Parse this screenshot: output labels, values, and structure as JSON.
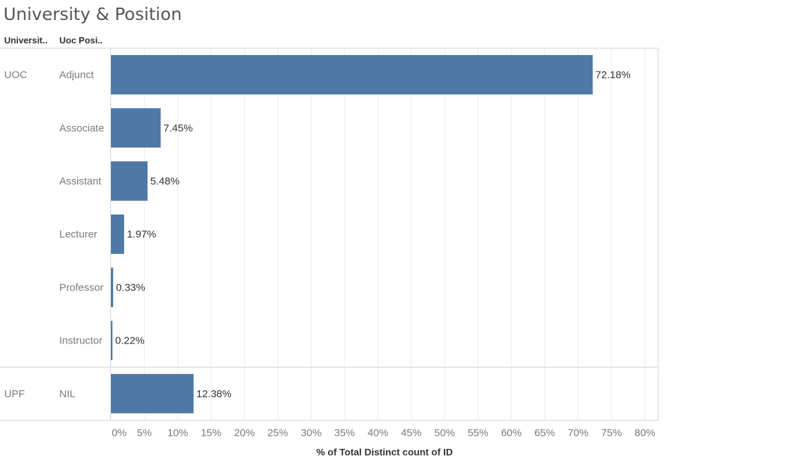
{
  "title": "University & Position",
  "column_headers": {
    "university": "Universit..",
    "position": "Uoc Posi.."
  },
  "colors": {
    "bar": "#4e79a7",
    "grid": "#ececec",
    "border": "#d2d2d2",
    "label": "#7a7a7a",
    "value_text": "#333333"
  },
  "chart_data": {
    "type": "bar",
    "orientation": "horizontal",
    "title": "University & Position",
    "xlabel": "% of Total Distinct count of ID",
    "ylabel": "",
    "xlim": [
      0,
      82
    ],
    "x_ticks": [
      "0%",
      "5%",
      "10%",
      "15%",
      "20%",
      "25%",
      "30%",
      "35%",
      "40%",
      "45%",
      "50%",
      "55%",
      "60%",
      "65%",
      "70%",
      "75%",
      "80%"
    ],
    "grid": true,
    "groups": [
      {
        "name": "UOC",
        "rows": [
          {
            "category": "Adjunct",
            "value": 72.18,
            "label": "72.18%"
          },
          {
            "category": "Associate",
            "value": 7.45,
            "label": "7.45%"
          },
          {
            "category": "Assistant",
            "value": 5.48,
            "label": "5.48%"
          },
          {
            "category": "Lecturer",
            "value": 1.97,
            "label": "1.97%"
          },
          {
            "category": "Professor",
            "value": 0.33,
            "label": "0.33%"
          },
          {
            "category": "Instructor",
            "value": 0.22,
            "label": "0.22%"
          }
        ]
      },
      {
        "name": "UPF",
        "rows": [
          {
            "category": "NIL",
            "value": 12.38,
            "label": "12.38%"
          }
        ]
      }
    ]
  }
}
